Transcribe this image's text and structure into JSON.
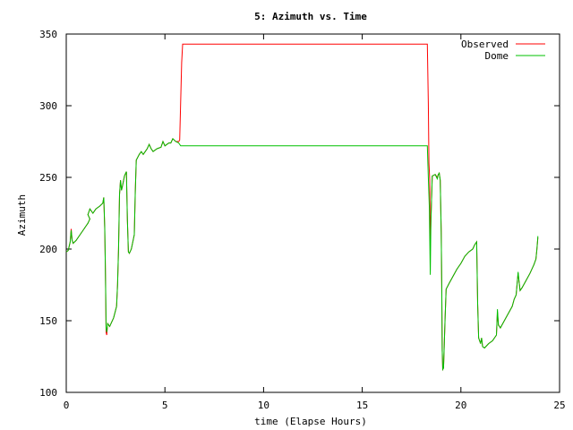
{
  "chart_data": {
    "type": "line",
    "title": "5: Azimuth vs. Time",
    "xlabel": "time (Elapse Hours)",
    "ylabel": "Azimuth",
    "xlim": [
      0,
      25
    ],
    "ylim": [
      100,
      350
    ],
    "xticks": [
      0,
      5,
      10,
      15,
      20,
      25
    ],
    "yticks": [
      100,
      150,
      200,
      250,
      300,
      350
    ],
    "grid": false,
    "legend_position": "top-right",
    "colors": {
      "Observed": "#ff0000",
      "Dome": "#00c000"
    },
    "series": [
      {
        "name": "Observed",
        "points": [
          [
            0.0,
            198
          ],
          [
            0.1,
            199
          ],
          [
            0.2,
            205
          ],
          [
            0.25,
            214
          ],
          [
            0.3,
            206
          ],
          [
            0.35,
            204
          ],
          [
            0.5,
            206
          ],
          [
            0.7,
            210
          ],
          [
            0.9,
            214
          ],
          [
            1.0,
            216
          ],
          [
            1.1,
            218
          ],
          [
            1.2,
            221
          ],
          [
            1.1,
            224
          ],
          [
            1.2,
            228
          ],
          [
            1.35,
            225
          ],
          [
            1.5,
            228
          ],
          [
            1.7,
            230
          ],
          [
            1.85,
            232
          ],
          [
            1.9,
            236
          ],
          [
            1.95,
            213
          ],
          [
            1.98,
            190
          ],
          [
            2.0,
            165
          ],
          [
            2.02,
            142
          ],
          [
            2.05,
            140
          ],
          [
            2.1,
            148
          ],
          [
            2.2,
            146
          ],
          [
            2.4,
            152
          ],
          [
            2.55,
            160
          ],
          [
            2.6,
            175
          ],
          [
            2.65,
            200
          ],
          [
            2.7,
            238
          ],
          [
            2.75,
            248
          ],
          [
            2.8,
            241
          ],
          [
            2.85,
            244
          ],
          [
            2.95,
            251
          ],
          [
            3.05,
            254
          ],
          [
            3.1,
            220
          ],
          [
            3.15,
            198
          ],
          [
            3.2,
            197
          ],
          [
            3.3,
            200
          ],
          [
            3.45,
            210
          ],
          [
            3.5,
            240
          ],
          [
            3.55,
            262
          ],
          [
            3.7,
            266
          ],
          [
            3.8,
            268
          ],
          [
            3.9,
            266
          ],
          [
            4.0,
            268
          ],
          [
            4.1,
            270
          ],
          [
            4.2,
            273
          ],
          [
            4.3,
            270
          ],
          [
            4.4,
            268
          ],
          [
            4.6,
            270
          ],
          [
            4.8,
            271
          ],
          [
            4.9,
            275
          ],
          [
            5.0,
            272
          ],
          [
            5.1,
            273
          ],
          [
            5.2,
            274
          ],
          [
            5.3,
            274
          ],
          [
            5.4,
            277
          ],
          [
            5.55,
            275
          ],
          [
            5.7,
            275
          ],
          [
            5.75,
            276
          ],
          [
            5.85,
            330
          ],
          [
            5.9,
            343
          ],
          [
            18.3,
            343
          ],
          [
            18.35,
            302
          ],
          [
            18.38,
            260
          ],
          [
            18.42,
            248
          ],
          [
            18.45,
            205
          ],
          [
            18.48,
            220
          ],
          [
            18.55,
            251
          ],
          [
            18.7,
            252
          ],
          [
            18.8,
            250
          ],
          [
            18.85,
            252
          ],
          [
            18.9,
            253
          ],
          [
            18.95,
            248
          ],
          [
            19.0,
            212
          ],
          [
            19.03,
            175
          ],
          [
            19.05,
            130
          ],
          [
            19.08,
            116
          ],
          [
            19.12,
            117
          ],
          [
            19.2,
            153
          ],
          [
            19.25,
            172
          ],
          [
            19.4,
            176
          ],
          [
            19.6,
            181
          ],
          [
            19.8,
            186
          ],
          [
            20.0,
            190
          ],
          [
            20.2,
            195
          ],
          [
            20.4,
            198
          ],
          [
            20.6,
            200
          ],
          [
            20.7,
            203
          ],
          [
            20.8,
            205
          ],
          [
            20.85,
            162
          ],
          [
            20.9,
            138
          ],
          [
            21.0,
            134
          ],
          [
            21.05,
            138
          ],
          [
            21.1,
            132
          ],
          [
            21.2,
            131
          ],
          [
            21.4,
            134
          ],
          [
            21.6,
            136
          ],
          [
            21.8,
            140
          ],
          [
            21.85,
            156
          ],
          [
            21.9,
            147
          ],
          [
            22.0,
            145
          ],
          [
            22.2,
            150
          ],
          [
            22.4,
            155
          ],
          [
            22.6,
            160
          ],
          [
            22.7,
            165
          ],
          [
            22.8,
            168
          ],
          [
            22.85,
            176
          ],
          [
            22.9,
            183
          ],
          [
            22.95,
            177
          ],
          [
            23.0,
            171
          ],
          [
            23.1,
            173
          ],
          [
            23.3,
            178
          ],
          [
            23.5,
            183
          ],
          [
            23.7,
            189
          ],
          [
            23.8,
            193
          ],
          [
            23.85,
            200
          ],
          [
            23.9,
            208
          ]
        ]
      },
      {
        "name": "Dome",
        "points": [
          [
            0.0,
            198
          ],
          [
            0.1,
            199
          ],
          [
            0.2,
            205
          ],
          [
            0.25,
            213
          ],
          [
            0.3,
            206
          ],
          [
            0.35,
            204
          ],
          [
            0.5,
            206
          ],
          [
            0.7,
            210
          ],
          [
            0.9,
            214
          ],
          [
            1.0,
            216
          ],
          [
            1.1,
            218
          ],
          [
            1.2,
            221
          ],
          [
            1.1,
            224
          ],
          [
            1.2,
            228
          ],
          [
            1.35,
            225
          ],
          [
            1.5,
            228
          ],
          [
            1.7,
            230
          ],
          [
            1.85,
            232
          ],
          [
            1.9,
            236
          ],
          [
            1.95,
            215
          ],
          [
            1.98,
            190
          ],
          [
            2.0,
            168
          ],
          [
            2.02,
            145
          ],
          [
            2.05,
            142
          ],
          [
            2.1,
            148
          ],
          [
            2.2,
            146
          ],
          [
            2.4,
            152
          ],
          [
            2.55,
            160
          ],
          [
            2.6,
            175
          ],
          [
            2.65,
            200
          ],
          [
            2.7,
            238
          ],
          [
            2.75,
            248
          ],
          [
            2.8,
            241
          ],
          [
            2.85,
            244
          ],
          [
            2.95,
            251
          ],
          [
            3.05,
            254
          ],
          [
            3.1,
            220
          ],
          [
            3.15,
            198
          ],
          [
            3.2,
            197
          ],
          [
            3.3,
            200
          ],
          [
            3.45,
            210
          ],
          [
            3.5,
            240
          ],
          [
            3.55,
            262
          ],
          [
            3.7,
            266
          ],
          [
            3.8,
            268
          ],
          [
            3.9,
            266
          ],
          [
            4.0,
            268
          ],
          [
            4.1,
            270
          ],
          [
            4.2,
            273
          ],
          [
            4.3,
            270
          ],
          [
            4.4,
            268
          ],
          [
            4.6,
            270
          ],
          [
            4.8,
            271
          ],
          [
            4.9,
            275
          ],
          [
            5.0,
            272
          ],
          [
            5.1,
            273
          ],
          [
            5.2,
            274
          ],
          [
            5.3,
            274
          ],
          [
            5.4,
            277
          ],
          [
            5.55,
            275
          ],
          [
            5.7,
            274
          ],
          [
            5.8,
            272
          ],
          [
            6.0,
            272
          ],
          [
            18.3,
            272
          ],
          [
            18.35,
            250
          ],
          [
            18.4,
            230
          ],
          [
            18.45,
            182
          ],
          [
            18.48,
            220
          ],
          [
            18.55,
            251
          ],
          [
            18.7,
            252
          ],
          [
            18.8,
            249
          ],
          [
            18.85,
            252
          ],
          [
            18.9,
            253
          ],
          [
            18.95,
            248
          ],
          [
            19.0,
            212
          ],
          [
            19.03,
            175
          ],
          [
            19.05,
            130
          ],
          [
            19.08,
            116
          ],
          [
            19.12,
            117
          ],
          [
            19.2,
            153
          ],
          [
            19.25,
            172
          ],
          [
            19.4,
            176
          ],
          [
            19.6,
            181
          ],
          [
            19.8,
            186
          ],
          [
            20.0,
            190
          ],
          [
            20.2,
            195
          ],
          [
            20.4,
            198
          ],
          [
            20.6,
            200
          ],
          [
            20.7,
            203
          ],
          [
            20.8,
            205
          ],
          [
            20.85,
            162
          ],
          [
            20.9,
            138
          ],
          [
            21.0,
            134
          ],
          [
            21.05,
            138
          ],
          [
            21.1,
            132
          ],
          [
            21.2,
            131
          ],
          [
            21.4,
            134
          ],
          [
            21.6,
            136
          ],
          [
            21.8,
            140
          ],
          [
            21.85,
            158
          ],
          [
            21.9,
            147
          ],
          [
            22.0,
            145
          ],
          [
            22.2,
            150
          ],
          [
            22.4,
            155
          ],
          [
            22.6,
            160
          ],
          [
            22.7,
            165
          ],
          [
            22.8,
            168
          ],
          [
            22.85,
            176
          ],
          [
            22.9,
            184
          ],
          [
            22.95,
            177
          ],
          [
            23.0,
            171
          ],
          [
            23.1,
            173
          ],
          [
            23.3,
            178
          ],
          [
            23.5,
            183
          ],
          [
            23.7,
            189
          ],
          [
            23.8,
            193
          ],
          [
            23.85,
            200
          ],
          [
            23.9,
            209
          ]
        ]
      }
    ]
  }
}
